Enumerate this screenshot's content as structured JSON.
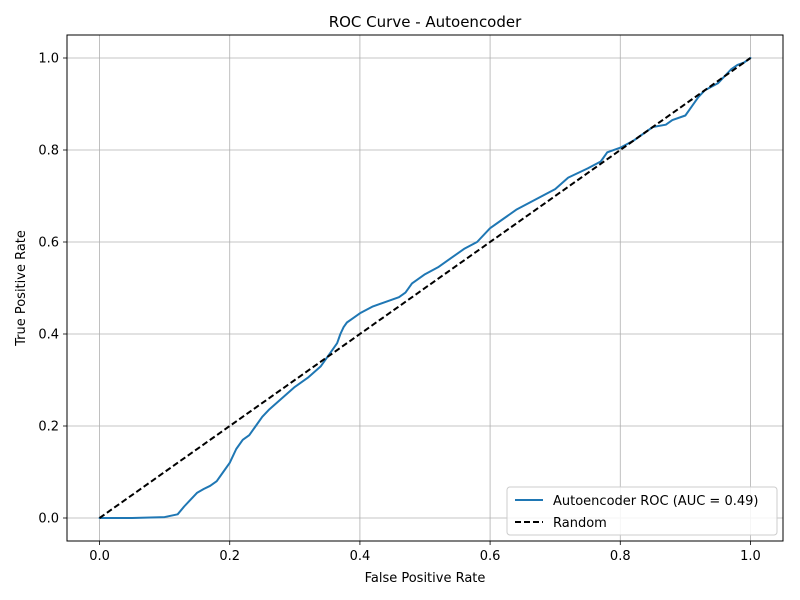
{
  "chart_data": {
    "type": "line",
    "title": "ROC Curve - Autoencoder",
    "xlabel": "False Positive Rate",
    "ylabel": "True Positive Rate",
    "xlim": [
      -0.05,
      1.05
    ],
    "ylim": [
      -0.05,
      1.05
    ],
    "xticks": [
      0.0,
      0.2,
      0.4,
      0.6,
      0.8,
      1.0
    ],
    "yticks": [
      0.0,
      0.2,
      0.4,
      0.6,
      0.8,
      1.0
    ],
    "xtick_labels": [
      "0.0",
      "0.2",
      "0.4",
      "0.6",
      "0.8",
      "1.0"
    ],
    "ytick_labels": [
      "0.0",
      "0.2",
      "0.4",
      "0.6",
      "0.8",
      "1.0"
    ],
    "grid": true,
    "legend_position": "lower-right",
    "series": [
      {
        "name": "Autoencoder ROC (AUC = 0.49)",
        "color": "#1f77b4",
        "style": "solid",
        "x": [
          0.0,
          0.05,
          0.1,
          0.12,
          0.13,
          0.14,
          0.15,
          0.16,
          0.17,
          0.18,
          0.19,
          0.2,
          0.21,
          0.22,
          0.23,
          0.24,
          0.25,
          0.26,
          0.28,
          0.3,
          0.32,
          0.34,
          0.355,
          0.365,
          0.37,
          0.375,
          0.38,
          0.39,
          0.4,
          0.42,
          0.44,
          0.46,
          0.47,
          0.48,
          0.5,
          0.52,
          0.54,
          0.56,
          0.58,
          0.6,
          0.62,
          0.64,
          0.66,
          0.68,
          0.7,
          0.72,
          0.75,
          0.77,
          0.78,
          0.8,
          0.82,
          0.83,
          0.85,
          0.87,
          0.88,
          0.9,
          0.91,
          0.92,
          0.93,
          0.95,
          0.96,
          0.97,
          0.98,
          0.99,
          1.0
        ],
        "y": [
          0.0,
          0.0,
          0.002,
          0.008,
          0.025,
          0.04,
          0.055,
          0.063,
          0.07,
          0.08,
          0.1,
          0.12,
          0.15,
          0.17,
          0.18,
          0.2,
          0.22,
          0.235,
          0.26,
          0.285,
          0.305,
          0.33,
          0.36,
          0.38,
          0.4,
          0.415,
          0.425,
          0.435,
          0.445,
          0.46,
          0.47,
          0.48,
          0.49,
          0.51,
          0.53,
          0.545,
          0.565,
          0.585,
          0.6,
          0.63,
          0.65,
          0.67,
          0.685,
          0.7,
          0.715,
          0.74,
          0.76,
          0.775,
          0.795,
          0.805,
          0.82,
          0.83,
          0.85,
          0.855,
          0.865,
          0.875,
          0.895,
          0.915,
          0.93,
          0.945,
          0.96,
          0.975,
          0.985,
          0.99,
          1.0
        ]
      },
      {
        "name": "Random",
        "color": "#000000",
        "style": "dashed",
        "x": [
          0.0,
          1.0
        ],
        "y": [
          0.0,
          1.0
        ]
      }
    ]
  }
}
